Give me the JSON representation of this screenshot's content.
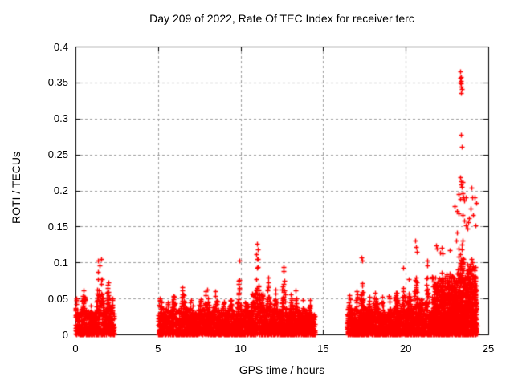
{
  "window": {
    "background": "#ffffff"
  },
  "chart_data": {
    "type": "scatter",
    "title": "Day 209 of 2022, Rate Of TEC Index for receiver terc",
    "xlabel": "GPS time / hours",
    "ylabel": "ROTI / TECUs",
    "xlim": [
      0,
      25
    ],
    "ylim": [
      0,
      0.4
    ],
    "xticks": [
      0,
      5,
      10,
      15,
      20,
      25
    ],
    "xtick_labels": [
      "0",
      "5",
      "10",
      "15",
      "20",
      "25"
    ],
    "yticks": [
      0,
      0.05,
      0.1,
      0.15,
      0.2,
      0.25,
      0.3,
      0.35,
      0.4
    ],
    "ytick_labels": [
      "0",
      "0.05",
      "0.1",
      "0.15",
      "0.2",
      "0.25",
      "0.3",
      "0.35",
      "0.4"
    ],
    "grid": {
      "show": true,
      "style": "dashed",
      "color": "#9c9c9c"
    },
    "axis_color": "#000000",
    "marker": {
      "shape": "plus",
      "color": "#ff0000",
      "size": 7
    },
    "legend": "none",
    "seed": 209,
    "clusters": [
      {
        "name": "morning-arc",
        "x_start": 0.0,
        "x_end": 2.35,
        "points": 700,
        "base_level": 0.034,
        "exponent": 1.6,
        "peaks": [
          {
            "x": 0.06,
            "h": 0.066,
            "w": 0.15
          },
          {
            "x": 0.5,
            "h": 0.073,
            "w": 0.3
          },
          {
            "x": 0.9,
            "h": 0.05,
            "w": 0.2
          },
          {
            "x": 1.35,
            "h": 0.1,
            "w": 0.2
          },
          {
            "x": 1.6,
            "h": 0.105,
            "w": 0.18
          },
          {
            "x": 1.95,
            "h": 0.089,
            "w": 0.22
          },
          {
            "x": 2.25,
            "h": 0.06,
            "w": 0.15
          }
        ]
      },
      {
        "name": "midday-arc",
        "x_start": 5.02,
        "x_end": 14.5,
        "points": 3100,
        "base_level": 0.035,
        "exponent": 1.6,
        "peaks": [
          {
            "x": 5.15,
            "h": 0.062,
            "w": 0.25
          },
          {
            "x": 5.55,
            "h": 0.055,
            "w": 0.3
          },
          {
            "x": 5.95,
            "h": 0.068,
            "w": 0.3
          },
          {
            "x": 6.5,
            "h": 0.075,
            "w": 0.35
          },
          {
            "x": 7.0,
            "h": 0.06,
            "w": 0.3
          },
          {
            "x": 7.55,
            "h": 0.058,
            "w": 0.3
          },
          {
            "x": 7.95,
            "h": 0.075,
            "w": 0.3
          },
          {
            "x": 8.5,
            "h": 0.068,
            "w": 0.4
          },
          {
            "x": 9.0,
            "h": 0.055,
            "w": 0.3
          },
          {
            "x": 9.4,
            "h": 0.062,
            "w": 0.3
          },
          {
            "x": 9.9,
            "h": 0.1,
            "w": 0.22
          },
          {
            "x": 10.35,
            "h": 0.065,
            "w": 0.3
          },
          {
            "x": 10.75,
            "h": 0.08,
            "w": 0.25
          },
          {
            "x": 11.0,
            "h": 0.12,
            "w": 0.28
          },
          {
            "x": 11.3,
            "h": 0.07,
            "w": 0.3
          },
          {
            "x": 11.65,
            "h": 0.085,
            "w": 0.3
          },
          {
            "x": 12.1,
            "h": 0.065,
            "w": 0.3
          },
          {
            "x": 12.6,
            "h": 0.09,
            "w": 0.25
          },
          {
            "x": 13.05,
            "h": 0.06,
            "w": 0.3
          },
          {
            "x": 13.35,
            "h": 0.063,
            "w": 0.25
          },
          {
            "x": 13.8,
            "h": 0.052,
            "w": 0.3
          },
          {
            "x": 14.2,
            "h": 0.05,
            "w": 0.25
          }
        ]
      },
      {
        "name": "evening-arc",
        "x_start": 16.45,
        "x_end": 24.3,
        "points": 3000,
        "base_level": 0.035,
        "exponent": 1.6,
        "peaks": [
          {
            "x": 16.6,
            "h": 0.06,
            "w": 0.3
          },
          {
            "x": 17.05,
            "h": 0.065,
            "w": 0.3
          },
          {
            "x": 17.35,
            "h": 0.08,
            "w": 0.25
          },
          {
            "x": 17.8,
            "h": 0.055,
            "w": 0.3
          },
          {
            "x": 18.15,
            "h": 0.068,
            "w": 0.35
          },
          {
            "x": 18.6,
            "h": 0.055,
            "w": 0.3
          },
          {
            "x": 19.0,
            "h": 0.06,
            "w": 0.3
          },
          {
            "x": 19.4,
            "h": 0.075,
            "w": 0.3
          },
          {
            "x": 19.85,
            "h": 0.085,
            "w": 0.25
          },
          {
            "x": 20.2,
            "h": 0.08,
            "w": 0.3
          },
          {
            "x": 20.6,
            "h": 0.1,
            "w": 0.25
          },
          {
            "x": 20.9,
            "h": 0.065,
            "w": 0.3
          },
          {
            "x": 21.3,
            "h": 0.085,
            "w": 0.3
          },
          {
            "x": 21.8,
            "h": 0.095,
            "w": 0.25
          },
          {
            "x": 22.2,
            "h": 0.095,
            "w": 0.3
          },
          {
            "x": 22.65,
            "h": 0.09,
            "w": 0.3
          },
          {
            "x": 23.1,
            "h": 0.1,
            "w": 0.4
          },
          {
            "x": 23.45,
            "h": 0.12,
            "w": 0.5
          },
          {
            "x": 23.9,
            "h": 0.11,
            "w": 0.4
          },
          {
            "x": 24.15,
            "h": 0.1,
            "w": 0.3
          }
        ]
      },
      {
        "name": "storm-ramp",
        "x_start": 21.6,
        "x_end": 24.3,
        "points": 700,
        "base_level": 0.085,
        "exponent": 1.05,
        "peaks": [
          {
            "x": 23.4,
            "h": 0.148,
            "w": 0.45
          },
          {
            "x": 23.75,
            "h": 0.125,
            "w": 0.3
          },
          {
            "x": 24.05,
            "h": 0.135,
            "w": 0.3
          },
          {
            "x": 24.2,
            "h": 0.11,
            "w": 0.2
          }
        ]
      }
    ],
    "outliers": [
      [
        1.38,
        0.102
      ],
      [
        1.55,
        0.105
      ],
      [
        1.45,
        0.096
      ],
      [
        9.92,
        0.103
      ],
      [
        10.98,
        0.126
      ],
      [
        11.02,
        0.118
      ],
      [
        10.95,
        0.111
      ],
      [
        11.05,
        0.105
      ],
      [
        12.58,
        0.094
      ],
      [
        12.62,
        0.088
      ],
      [
        17.32,
        0.107
      ],
      [
        17.38,
        0.103
      ],
      [
        19.85,
        0.092
      ],
      [
        20.58,
        0.13
      ],
      [
        20.62,
        0.122
      ],
      [
        20.67,
        0.115
      ],
      [
        21.32,
        0.102
      ],
      [
        21.28,
        0.096
      ],
      [
        21.83,
        0.124
      ],
      [
        21.87,
        0.119
      ],
      [
        22.1,
        0.114
      ],
      [
        22.18,
        0.12
      ],
      [
        22.25,
        0.112
      ],
      [
        22.66,
        0.117
      ],
      [
        22.95,
        0.178
      ],
      [
        23.05,
        0.13
      ],
      [
        23.12,
        0.142
      ],
      [
        23.2,
        0.108
      ],
      [
        23.22,
        0.119
      ],
      [
        23.22,
        0.195
      ],
      [
        23.28,
        0.188
      ],
      [
        23.3,
        0.365
      ],
      [
        23.31,
        0.35
      ],
      [
        23.32,
        0.357
      ],
      [
        23.33,
        0.344
      ],
      [
        23.34,
        0.352
      ],
      [
        23.35,
        0.335
      ],
      [
        23.36,
        0.349
      ],
      [
        23.37,
        0.358
      ],
      [
        23.38,
        0.341
      ],
      [
        23.35,
        0.277
      ],
      [
        23.38,
        0.261
      ],
      [
        23.31,
        0.218
      ],
      [
        23.34,
        0.213
      ],
      [
        23.37,
        0.208
      ],
      [
        23.41,
        0.205
      ],
      [
        23.45,
        0.212
      ],
      [
        23.44,
        0.196
      ],
      [
        23.5,
        0.19
      ],
      [
        23.55,
        0.186
      ],
      [
        23.62,
        0.191
      ],
      [
        23.1,
        0.172
      ],
      [
        23.2,
        0.168
      ],
      [
        23.42,
        0.166
      ],
      [
        23.52,
        0.158
      ],
      [
        23.66,
        0.151
      ],
      [
        23.72,
        0.147
      ],
      [
        23.78,
        0.156
      ],
      [
        23.85,
        0.162
      ],
      [
        23.95,
        0.175
      ],
      [
        24.0,
        0.204
      ],
      [
        24.05,
        0.19
      ],
      [
        24.1,
        0.166
      ],
      [
        24.16,
        0.19
      ],
      [
        24.2,
        0.152
      ],
      [
        24.27,
        0.183
      ]
    ]
  }
}
